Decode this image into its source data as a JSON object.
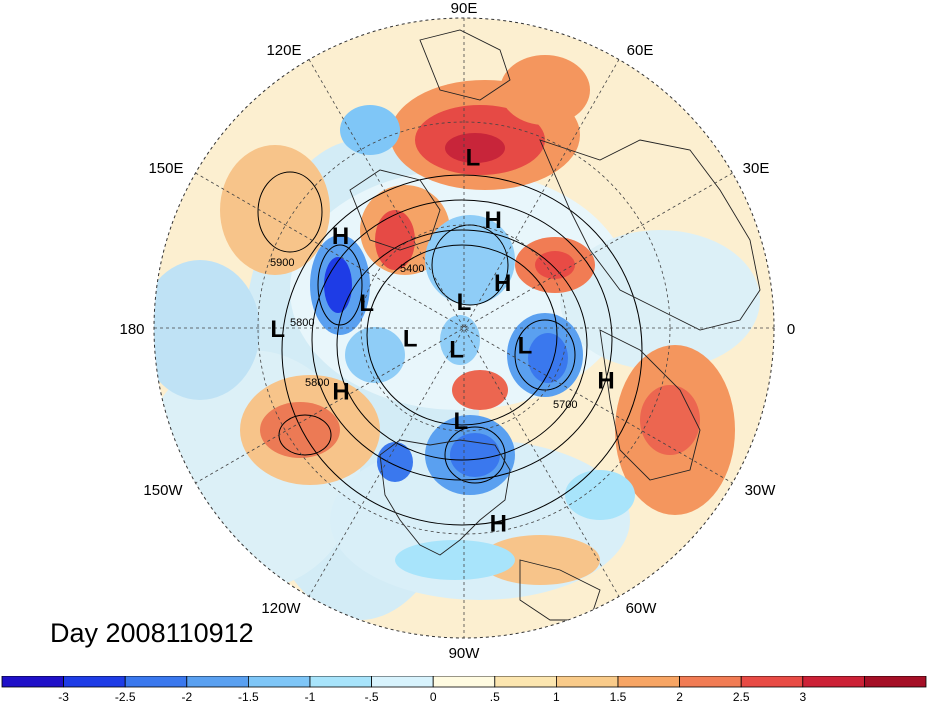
{
  "title": "Day 2008110912",
  "map": {
    "projection": "north-polar-stereographic",
    "longitude_labels": [
      {
        "lon": 90,
        "text": "90E"
      },
      {
        "lon": 60,
        "text": "60E"
      },
      {
        "lon": 30,
        "text": "30E"
      },
      {
        "lon": 0,
        "text": "0"
      },
      {
        "lon": -30,
        "text": "30W"
      },
      {
        "lon": -60,
        "text": "60W"
      },
      {
        "lon": -90,
        "text": "90W"
      },
      {
        "lon": -120,
        "text": "120W"
      },
      {
        "lon": -150,
        "text": "150W"
      },
      {
        "lon": 180,
        "text": "180"
      },
      {
        "lon": 150,
        "text": "150E"
      },
      {
        "lon": 120,
        "text": "120E"
      }
    ],
    "pressure_centers": [
      {
        "type": "L",
        "label": "L",
        "lon": 87,
        "lat": 32
      },
      {
        "type": "H",
        "label": "H",
        "lon": 75,
        "lat": 50
      },
      {
        "type": "H",
        "label": "H",
        "lon": 143,
        "lat": 37
      },
      {
        "type": "L",
        "label": "L",
        "lon": 165,
        "lat": 54
      },
      {
        "type": "L",
        "label": "L",
        "lon": 90,
        "lat": 80
      },
      {
        "type": "H",
        "label": "H",
        "lon": 50,
        "lat": 68
      },
      {
        "type": "L",
        "label": "L",
        "lon": 180,
        "lat": 28
      },
      {
        "type": "L",
        "label": "L",
        "lon": -170,
        "lat": 70
      },
      {
        "type": "L",
        "label": "L",
        "lon": -15,
        "lat": 67
      },
      {
        "type": "L",
        "label": "L",
        "lon": -110,
        "lat": 82
      },
      {
        "type": "H",
        "label": "H",
        "lon": -153,
        "lat": 42
      },
      {
        "type": "L",
        "label": "L",
        "lon": -92,
        "lat": 57
      },
      {
        "type": "H",
        "label": "H",
        "lon": -20,
        "lat": 38
      },
      {
        "type": "H",
        "label": "H",
        "lon": -80,
        "lat": 25
      }
    ],
    "contour_labels": [
      "5900",
      "5400",
      "5800",
      "5800",
      "5700"
    ]
  },
  "colorbar": {
    "colors": [
      "#1f10c8",
      "#1e3ce6",
      "#3a78ee",
      "#5aa0f0",
      "#7fc6f7",
      "#a8e4fb",
      "#d8f3fd",
      "#fffbe1",
      "#fce6b0",
      "#f9cb8a",
      "#f7a564",
      "#f17c54",
      "#e84b45",
      "#cc2136",
      "#a50f26"
    ],
    "tick_labels": [
      "-3",
      "-2.5",
      "-2",
      "-1.5",
      "-1",
      "-.5",
      "0",
      ".5",
      "1",
      "1.5",
      "2",
      "2.5",
      "3"
    ]
  }
}
